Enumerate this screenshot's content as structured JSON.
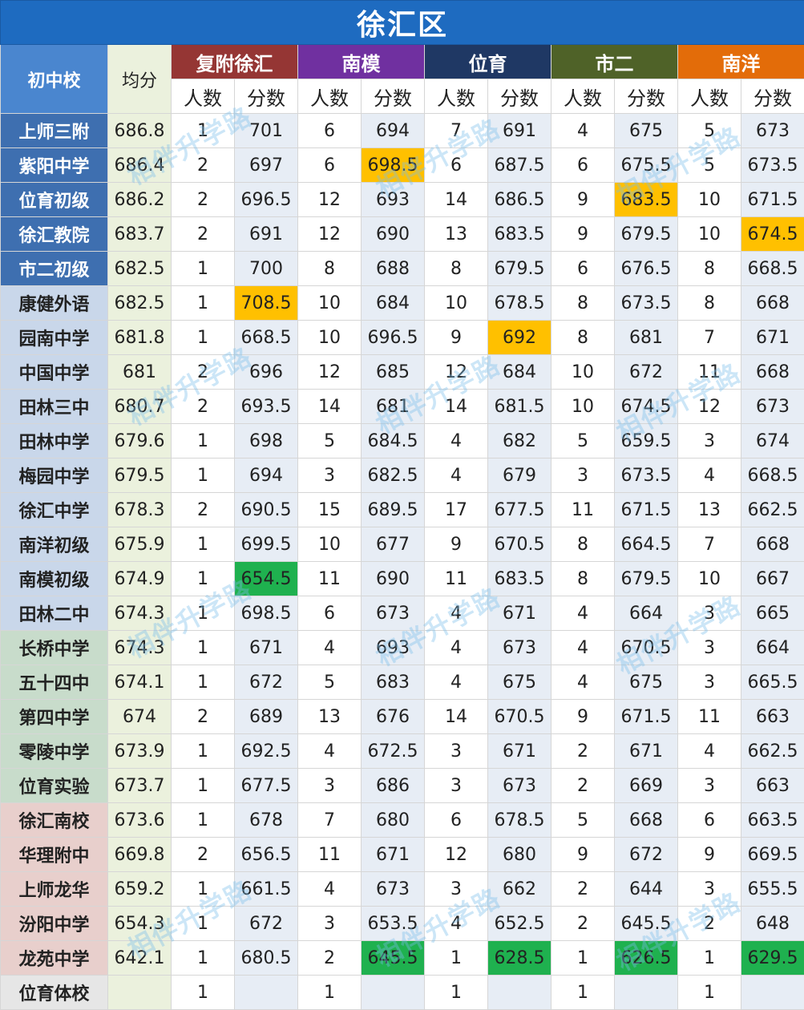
{
  "title": "徐汇区",
  "headers": {
    "school": "初中校",
    "avg": "均分",
    "groups": [
      {
        "name": "复附徐汇",
        "color": "#953634"
      },
      {
        "name": "南模",
        "color": "#7030a0"
      },
      {
        "name": "位育",
        "color": "#1f3864"
      },
      {
        "name": "市二",
        "color": "#4f6228"
      },
      {
        "name": "南洋",
        "color": "#e36c09"
      }
    ],
    "count_label": "人数",
    "score_label": "分数"
  },
  "school_colors": {
    "dark_blue": "#3e6fb0",
    "light_blue": "#c9d7ea",
    "green": "#c8dccb",
    "pink": "#e8cfcc",
    "gray": "#e6e6e6"
  },
  "highlight_colors": {
    "orange": "#ffc000",
    "green": "#1fb14f"
  },
  "rows": [
    {
      "school": "上师三附",
      "band": "dark_blue",
      "avg": "686.8",
      "cells": [
        [
          "1",
          "701"
        ],
        [
          "6",
          "694"
        ],
        [
          "7",
          "691"
        ],
        [
          "4",
          "675"
        ],
        [
          "5",
          "673"
        ]
      ]
    },
    {
      "school": "紫阳中学",
      "band": "dark_blue",
      "avg": "686.4",
      "cells": [
        [
          "2",
          "697"
        ],
        [
          "6",
          "698.5"
        ],
        [
          "6",
          "687.5"
        ],
        [
          "6",
          "675.5"
        ],
        [
          "5",
          "673.5"
        ]
      ],
      "highlight": [
        [
          1,
          "orange"
        ]
      ]
    },
    {
      "school": "位育初级",
      "band": "dark_blue",
      "avg": "686.2",
      "cells": [
        [
          "2",
          "696.5"
        ],
        [
          "12",
          "693"
        ],
        [
          "14",
          "686.5"
        ],
        [
          "9",
          "683.5"
        ],
        [
          "10",
          "671.5"
        ]
      ],
      "highlight": [
        [
          3,
          "orange"
        ]
      ]
    },
    {
      "school": "徐汇教院",
      "band": "dark_blue",
      "avg": "683.7",
      "cells": [
        [
          "2",
          "691"
        ],
        [
          "12",
          "690"
        ],
        [
          "13",
          "683.5"
        ],
        [
          "9",
          "679.5"
        ],
        [
          "10",
          "674.5"
        ]
      ],
      "highlight": [
        [
          4,
          "orange"
        ]
      ]
    },
    {
      "school": "市二初级",
      "band": "dark_blue",
      "avg": "682.5",
      "cells": [
        [
          "1",
          "700"
        ],
        [
          "8",
          "688"
        ],
        [
          "8",
          "679.5"
        ],
        [
          "6",
          "676.5"
        ],
        [
          "8",
          "668.5"
        ]
      ]
    },
    {
      "school": "康健外语",
      "band": "light_blue",
      "avg": "682.5",
      "cells": [
        [
          "1",
          "708.5"
        ],
        [
          "10",
          "684"
        ],
        [
          "10",
          "678.5"
        ],
        [
          "8",
          "673.5"
        ],
        [
          "8",
          "668"
        ]
      ],
      "highlight": [
        [
          0,
          "orange"
        ]
      ]
    },
    {
      "school": "园南中学",
      "band": "light_blue",
      "avg": "681.8",
      "cells": [
        [
          "1",
          "668.5"
        ],
        [
          "10",
          "696.5"
        ],
        [
          "9",
          "692"
        ],
        [
          "8",
          "681"
        ],
        [
          "7",
          "671"
        ]
      ],
      "highlight": [
        [
          2,
          "orange"
        ]
      ]
    },
    {
      "school": "中国中学",
      "band": "light_blue",
      "avg": "681",
      "cells": [
        [
          "2",
          "696"
        ],
        [
          "12",
          "685"
        ],
        [
          "12",
          "684"
        ],
        [
          "10",
          "672"
        ],
        [
          "11",
          "668"
        ]
      ]
    },
    {
      "school": "田林三中",
      "band": "light_blue",
      "avg": "680.7",
      "cells": [
        [
          "2",
          "693.5"
        ],
        [
          "14",
          "681"
        ],
        [
          "14",
          "681.5"
        ],
        [
          "10",
          "674.5"
        ],
        [
          "12",
          "673"
        ]
      ]
    },
    {
      "school": "田林中学",
      "band": "light_blue",
      "avg": "679.6",
      "cells": [
        [
          "1",
          "698"
        ],
        [
          "5",
          "684.5"
        ],
        [
          "4",
          "682"
        ],
        [
          "5",
          "659.5"
        ],
        [
          "3",
          "674"
        ]
      ]
    },
    {
      "school": "梅园中学",
      "band": "light_blue",
      "avg": "679.5",
      "cells": [
        [
          "1",
          "694"
        ],
        [
          "3",
          "682.5"
        ],
        [
          "4",
          "679"
        ],
        [
          "3",
          "673.5"
        ],
        [
          "4",
          "668.5"
        ]
      ]
    },
    {
      "school": "徐汇中学",
      "band": "light_blue",
      "avg": "678.3",
      "cells": [
        [
          "2",
          "690.5"
        ],
        [
          "15",
          "689.5"
        ],
        [
          "17",
          "677.5"
        ],
        [
          "11",
          "671.5"
        ],
        [
          "13",
          "662.5"
        ]
      ]
    },
    {
      "school": "南洋初级",
      "band": "light_blue",
      "avg": "675.9",
      "cells": [
        [
          "1",
          "699.5"
        ],
        [
          "10",
          "677"
        ],
        [
          "9",
          "670.5"
        ],
        [
          "8",
          "664.5"
        ],
        [
          "7",
          "668"
        ]
      ]
    },
    {
      "school": "南模初级",
      "band": "light_blue",
      "avg": "674.9",
      "cells": [
        [
          "1",
          "654.5"
        ],
        [
          "11",
          "690"
        ],
        [
          "11",
          "683.5"
        ],
        [
          "8",
          "679.5"
        ],
        [
          "10",
          "667"
        ]
      ],
      "highlight": [
        [
          0,
          "green"
        ]
      ]
    },
    {
      "school": "田林二中",
      "band": "light_blue",
      "avg": "674.3",
      "cells": [
        [
          "1",
          "698.5"
        ],
        [
          "6",
          "673"
        ],
        [
          "4",
          "671"
        ],
        [
          "4",
          "664"
        ],
        [
          "3",
          "665"
        ]
      ]
    },
    {
      "school": "长桥中学",
      "band": "green",
      "avg": "674.3",
      "cells": [
        [
          "1",
          "671"
        ],
        [
          "4",
          "693"
        ],
        [
          "4",
          "673"
        ],
        [
          "4",
          "670.5"
        ],
        [
          "3",
          "664"
        ]
      ]
    },
    {
      "school": "五十四中",
      "band": "green",
      "avg": "674.1",
      "cells": [
        [
          "1",
          "672"
        ],
        [
          "5",
          "683"
        ],
        [
          "4",
          "675"
        ],
        [
          "4",
          "675"
        ],
        [
          "3",
          "665.5"
        ]
      ]
    },
    {
      "school": "第四中学",
      "band": "green",
      "avg": "674",
      "cells": [
        [
          "2",
          "689"
        ],
        [
          "13",
          "676"
        ],
        [
          "14",
          "670.5"
        ],
        [
          "9",
          "671.5"
        ],
        [
          "11",
          "663"
        ]
      ]
    },
    {
      "school": "零陵中学",
      "band": "green",
      "avg": "673.9",
      "cells": [
        [
          "1",
          "692.5"
        ],
        [
          "4",
          "672.5"
        ],
        [
          "3",
          "671"
        ],
        [
          "2",
          "671"
        ],
        [
          "4",
          "662.5"
        ]
      ]
    },
    {
      "school": "位育实验",
      "band": "green",
      "avg": "673.7",
      "cells": [
        [
          "1",
          "677.5"
        ],
        [
          "3",
          "686"
        ],
        [
          "3",
          "673"
        ],
        [
          "2",
          "669"
        ],
        [
          "3",
          "663"
        ]
      ]
    },
    {
      "school": "徐汇南校",
      "band": "pink",
      "avg": "673.6",
      "cells": [
        [
          "1",
          "678"
        ],
        [
          "7",
          "680"
        ],
        [
          "6",
          "678.5"
        ],
        [
          "5",
          "668"
        ],
        [
          "6",
          "663.5"
        ]
      ]
    },
    {
      "school": "华理附中",
      "band": "pink",
      "avg": "669.8",
      "cells": [
        [
          "2",
          "656.5"
        ],
        [
          "11",
          "671"
        ],
        [
          "12",
          "680"
        ],
        [
          "9",
          "672"
        ],
        [
          "9",
          "669.5"
        ]
      ]
    },
    {
      "school": "上师龙华",
      "band": "pink",
      "avg": "659.2",
      "cells": [
        [
          "1",
          "661.5"
        ],
        [
          "4",
          "673"
        ],
        [
          "3",
          "662"
        ],
        [
          "2",
          "644"
        ],
        [
          "3",
          "655.5"
        ]
      ]
    },
    {
      "school": "汾阳中学",
      "band": "pink",
      "avg": "654.3",
      "cells": [
        [
          "1",
          "672"
        ],
        [
          "3",
          "653.5"
        ],
        [
          "4",
          "652.5"
        ],
        [
          "2",
          "645.5"
        ],
        [
          "2",
          "648"
        ]
      ]
    },
    {
      "school": "龙苑中学",
      "band": "pink",
      "avg": "642.1",
      "cells": [
        [
          "1",
          "680.5"
        ],
        [
          "2",
          "645.5"
        ],
        [
          "1",
          "628.5"
        ],
        [
          "1",
          "626.5"
        ],
        [
          "1",
          "629.5"
        ]
      ],
      "highlight": [
        [
          1,
          "green"
        ],
        [
          2,
          "green"
        ],
        [
          3,
          "green"
        ],
        [
          4,
          "green"
        ]
      ]
    },
    {
      "school": "位育体校",
      "band": "gray",
      "avg": "",
      "cells": [
        [
          "1",
          ""
        ],
        [
          "1",
          ""
        ],
        [
          "1",
          ""
        ],
        [
          "1",
          ""
        ],
        [
          "1",
          ""
        ]
      ]
    }
  ],
  "watermark": "相伴升学路"
}
